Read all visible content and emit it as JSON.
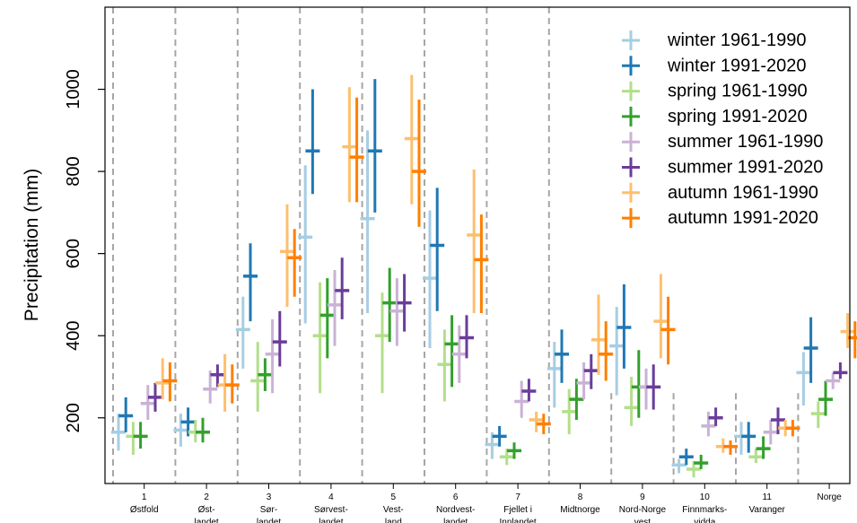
{
  "chart_data": {
    "type": "errorbar",
    "ylabel": "Precipitation (mm)",
    "yticks": [
      200,
      400,
      600,
      800,
      1000
    ],
    "ylim": [
      40,
      1200
    ],
    "grid": false,
    "legend_position": "top-right",
    "categories": [
      [
        "1",
        "Østfold"
      ],
      [
        "2",
        "Øst-",
        "landet"
      ],
      [
        "3",
        "Sør-",
        "landet"
      ],
      [
        "4",
        "Sørvest-",
        "landet"
      ],
      [
        "5",
        "Vest-",
        "land"
      ],
      [
        "6",
        "Nordvest-",
        "landet"
      ],
      [
        "7",
        "Fjellet i",
        "Innlandet"
      ],
      [
        "8",
        "Midtnorge"
      ],
      [
        "9",
        "Nord-Norge",
        "vest"
      ],
      [
        "10",
        "Finnmarks-",
        "vidda"
      ],
      [
        "11",
        "Varanger"
      ],
      [
        "Norge"
      ]
    ],
    "series": [
      {
        "name": "winter 1961-1990",
        "color": "#a6cee3",
        "values": [
          165,
          170,
          415,
          640,
          685,
          540,
          135,
          320,
          375,
          85,
          155,
          310
        ],
        "lower": [
          120,
          130,
          320,
          430,
          455,
          370,
          100,
          225,
          255,
          65,
          110,
          230
        ],
        "upper": [
          210,
          210,
          495,
          815,
          900,
          705,
          165,
          385,
          470,
          100,
          190,
          360
        ]
      },
      {
        "name": "winter 1991-2020",
        "color": "#1f78b4",
        "values": [
          205,
          190,
          545,
          850,
          850,
          620,
          155,
          355,
          420,
          105,
          155,
          370
        ],
        "lower": [
          165,
          155,
          435,
          745,
          700,
          460,
          130,
          285,
          320,
          85,
          115,
          285
        ],
        "upper": [
          250,
          225,
          625,
          1000,
          1025,
          760,
          180,
          415,
          525,
          125,
          190,
          445
        ]
      },
      {
        "name": "spring 1961-1990",
        "color": "#b2df8a",
        "values": [
          155,
          165,
          290,
          400,
          400,
          330,
          105,
          215,
          225,
          75,
          105,
          210
        ],
        "lower": [
          110,
          140,
          215,
          260,
          260,
          240,
          85,
          160,
          180,
          55,
          90,
          175
        ],
        "upper": [
          190,
          195,
          385,
          530,
          505,
          415,
          125,
          270,
          300,
          95,
          125,
          240
        ]
      },
      {
        "name": "spring 1991-2020",
        "color": "#33a02c",
        "values": [
          155,
          165,
          305,
          450,
          480,
          380,
          120,
          245,
          275,
          90,
          125,
          245
        ],
        "lower": [
          125,
          140,
          265,
          345,
          385,
          275,
          100,
          195,
          200,
          75,
          100,
          205
        ],
        "upper": [
          190,
          200,
          345,
          540,
          565,
          450,
          140,
          295,
          365,
          110,
          155,
          290
        ]
      },
      {
        "name": "summer 1961-1990",
        "color": "#cab2d6",
        "values": [
          235,
          270,
          355,
          475,
          460,
          355,
          240,
          285,
          275,
          180,
          165,
          290
        ],
        "lower": [
          195,
          235,
          260,
          375,
          375,
          285,
          200,
          245,
          220,
          155,
          135,
          270
        ],
        "upper": [
          280,
          315,
          440,
          560,
          540,
          425,
          290,
          335,
          320,
          215,
          195,
          310
        ]
      },
      {
        "name": "summer 1991-2020",
        "color": "#6a3d9a",
        "values": [
          250,
          305,
          385,
          510,
          480,
          395,
          265,
          315,
          275,
          200,
          195,
          310
        ],
        "lower": [
          215,
          275,
          325,
          440,
          410,
          345,
          240,
          270,
          220,
          180,
          160,
          295
        ],
        "upper": [
          285,
          330,
          460,
          590,
          550,
          450,
          295,
          355,
          330,
          225,
          225,
          335
        ]
      },
      {
        "name": "autumn 1961-1990",
        "color": "#fdbf6f",
        "values": [
          285,
          280,
          605,
          860,
          880,
          645,
          195,
          390,
          435,
          130,
          175,
          410
        ],
        "lower": [
          245,
          215,
          470,
          725,
          720,
          455,
          165,
          305,
          345,
          115,
          155,
          370
        ],
        "upper": [
          345,
          355,
          720,
          1005,
          1035,
          805,
          215,
          500,
          550,
          150,
          195,
          455
        ]
      },
      {
        "name": "autumn 1991-2020",
        "color": "#ff7f00",
        "values": [
          290,
          280,
          590,
          835,
          800,
          585,
          185,
          355,
          415,
          130,
          175,
          395
        ],
        "lower": [
          240,
          235,
          495,
          725,
          665,
          455,
          160,
          290,
          330,
          110,
          155,
          345
        ],
        "upper": [
          335,
          330,
          660,
          980,
          975,
          695,
          210,
          435,
          495,
          145,
          195,
          435
        ]
      }
    ]
  }
}
